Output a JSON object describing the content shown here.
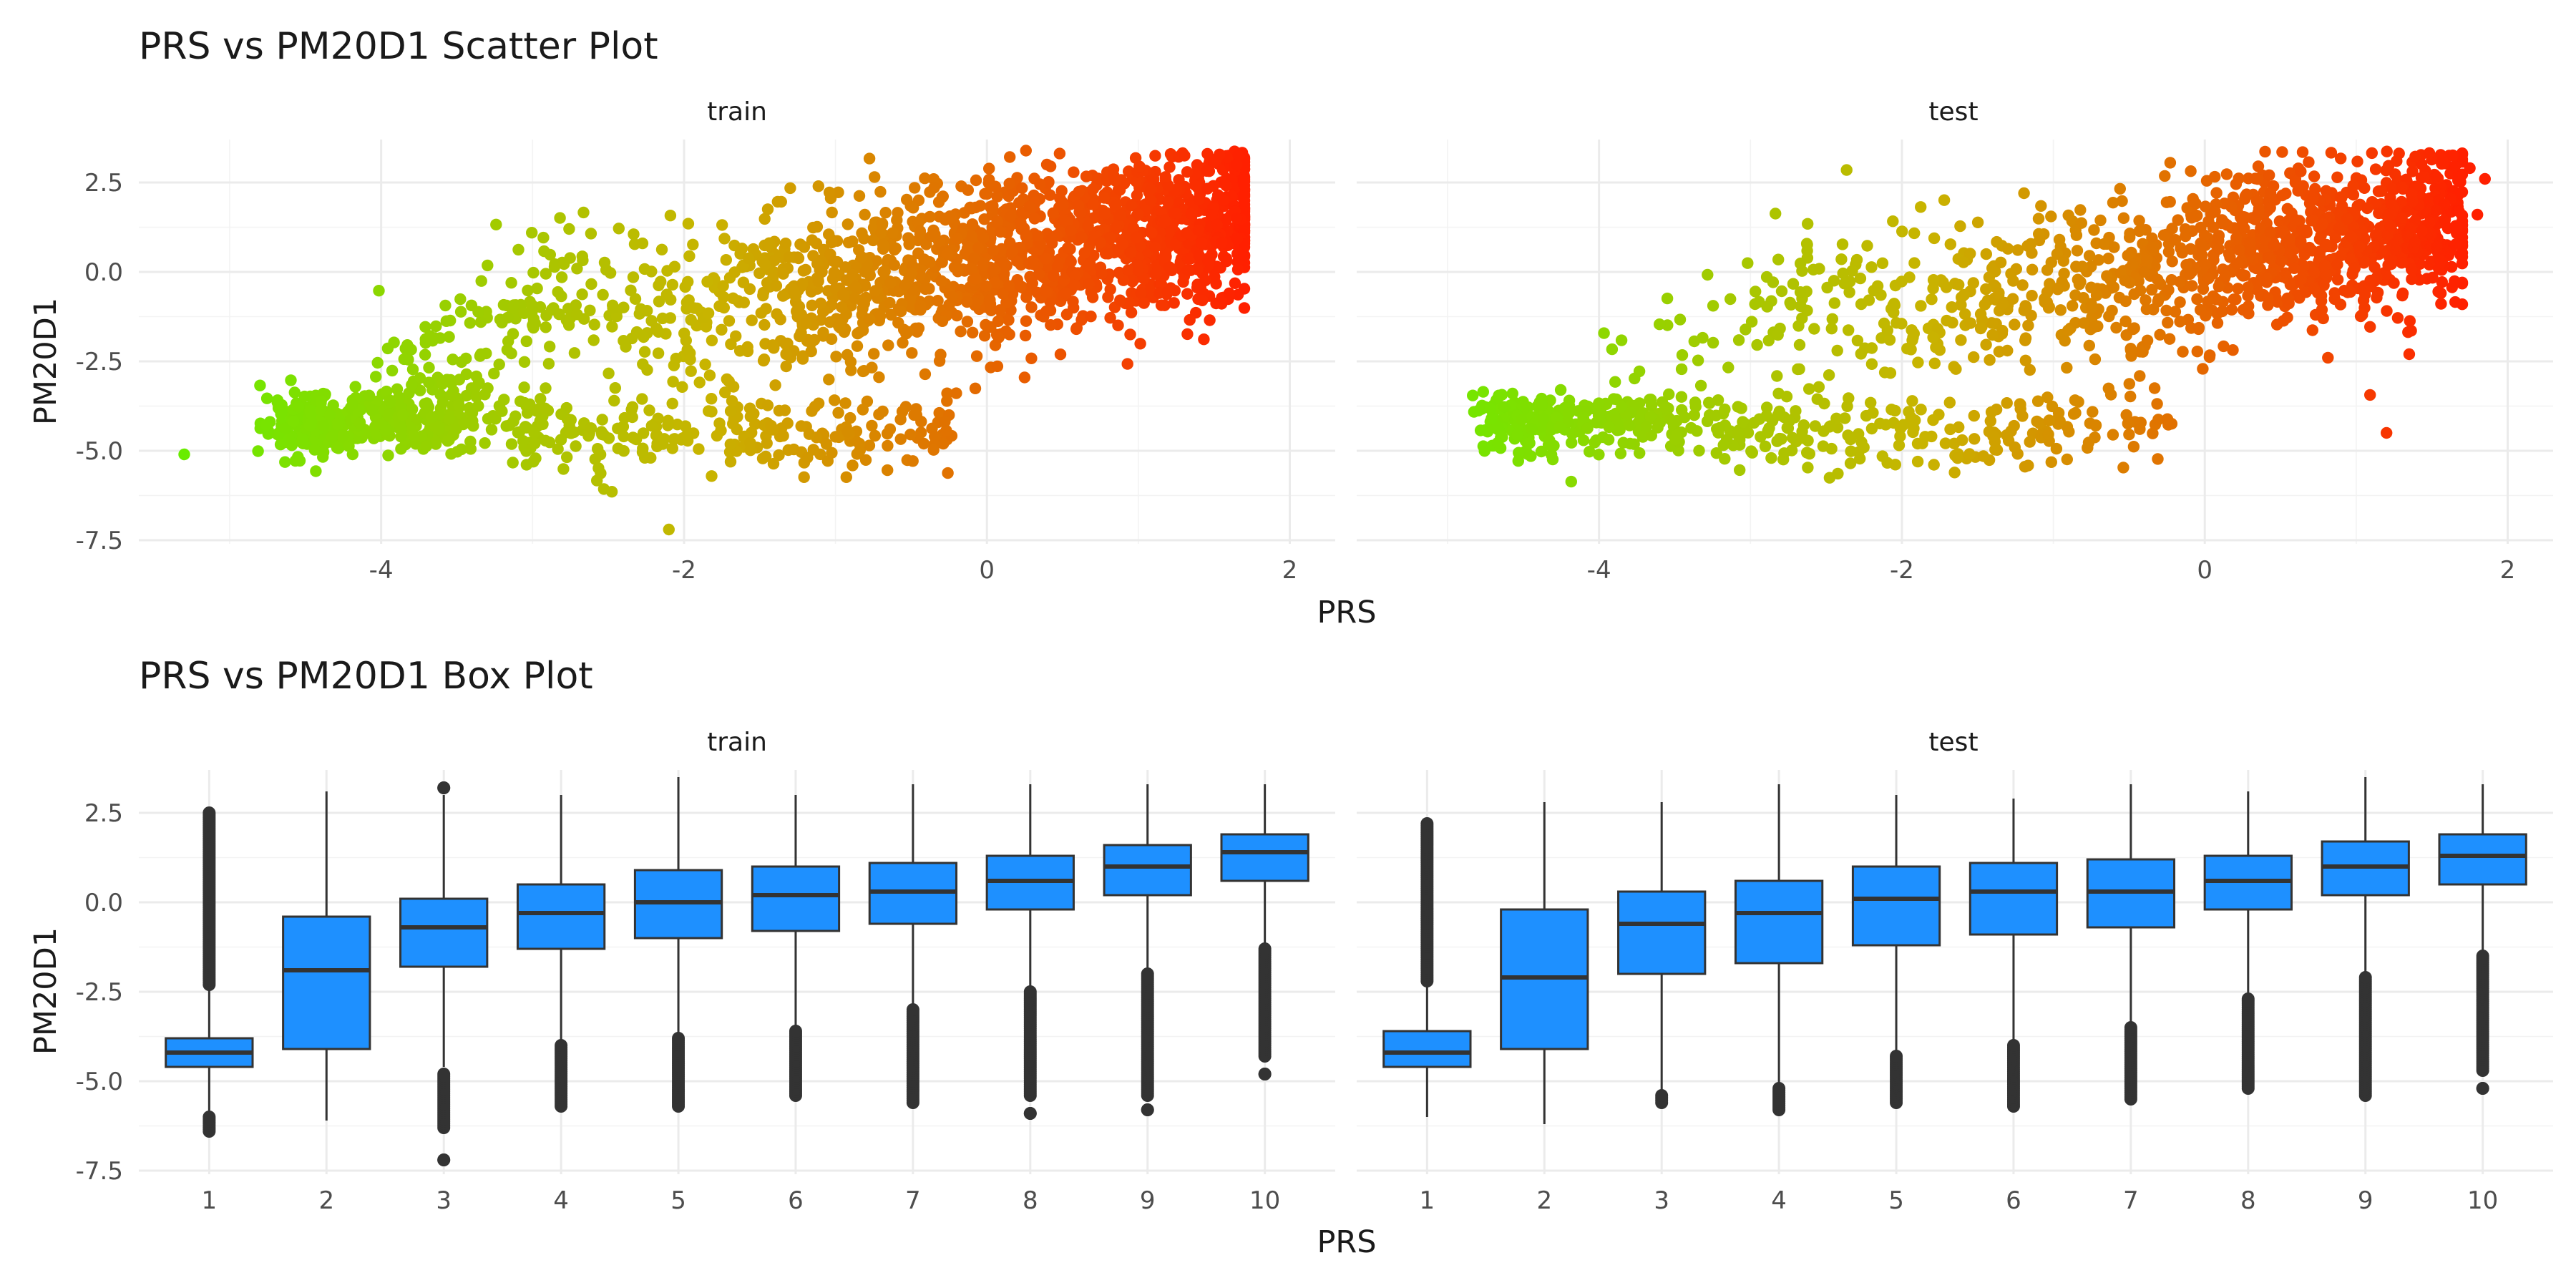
{
  "colors": {
    "gradient_low": "#66ee00",
    "gradient_mid": "#c8b400",
    "gradient_high": "#ff2000",
    "box_fill": "#1e90ff",
    "box_line": "#333333",
    "grid": "#ebebeb"
  },
  "chart_data": [
    {
      "type": "scatter",
      "title": "PRS vs PM20D1 Scatter Plot",
      "xlabel": "PRS",
      "ylabel": "PM20D1",
      "facets": [
        "train",
        "test"
      ],
      "xlim": [
        -5.6,
        2.3
      ],
      "ylim": [
        -7.6,
        3.7
      ],
      "x_ticks": [
        -4,
        -2,
        0,
        2
      ],
      "y_ticks": [
        -7.5,
        -5.0,
        -2.5,
        0.0,
        2.5
      ],
      "y_tick_labels": [
        "-7.5",
        "-5.0",
        "-2.5",
        "0.0",
        "2.5"
      ],
      "color_by": "PRS",
      "grid": true,
      "series": [
        {
          "facet": "train",
          "n_points_approx": 20000,
          "x_range": [
            -5.4,
            1.7
          ],
          "y_range": [
            -7.2,
            3.6
          ],
          "relation": "positive, two clusters"
        },
        {
          "facet": "test",
          "n_points_approx": 5000,
          "x_range": [
            -5.2,
            1.9
          ],
          "y_range": [
            -6.2,
            3.5
          ],
          "relation": "positive, two clusters"
        }
      ],
      "outliers": [
        {
          "facet": "train",
          "x": 1.65,
          "y": 3.0
        },
        {
          "facet": "train",
          "x": 1.65,
          "y": 1.5
        },
        {
          "facet": "train",
          "x": 1.6,
          "y": -0.6
        },
        {
          "facet": "train",
          "x": -2.1,
          "y": -7.2
        },
        {
          "facet": "train",
          "x": -5.3,
          "y": -5.1
        },
        {
          "facet": "test",
          "x": 1.75,
          "y": 2.9
        },
        {
          "facet": "test",
          "x": 1.85,
          "y": 2.6
        },
        {
          "facet": "test",
          "x": 1.8,
          "y": 1.6
        },
        {
          "facet": "test",
          "x": 1.35,
          "y": -2.3
        },
        {
          "facet": "test",
          "x": 1.2,
          "y": -4.5
        }
      ]
    },
    {
      "type": "box",
      "title": "PRS vs PM20D1 Box Plot",
      "xlabel": "PRS",
      "ylabel": "PM20D1",
      "facets": [
        "train",
        "test"
      ],
      "categories": [
        "1",
        "2",
        "3",
        "4",
        "5",
        "6",
        "7",
        "8",
        "9",
        "10"
      ],
      "ylim": [
        -7.6,
        3.7
      ],
      "y_ticks": [
        -7.5,
        -5.0,
        -2.5,
        0.0,
        2.5
      ],
      "y_tick_labels": [
        "-7.5",
        "-5.0",
        "-2.5",
        "0.0",
        "2.5"
      ],
      "grid": true,
      "series": [
        {
          "facet": "train",
          "boxes": [
            {
              "category": "1",
              "min": -6.2,
              "q1": -4.6,
              "median": -4.2,
              "q3": -3.8,
              "max": 2.5,
              "outlier_ranges": [
                [
                  -6.4,
                  -6.0
                ],
                [
                  -2.3,
                  2.5
                ]
              ]
            },
            {
              "category": "2",
              "min": -6.1,
              "q1": -4.1,
              "median": -1.9,
              "q3": -0.4,
              "max": 3.1,
              "outlier_ranges": []
            },
            {
              "category": "3",
              "min": -4.6,
              "q1": -1.8,
              "median": -0.7,
              "q3": 0.1,
              "max": 3.0,
              "outlier_ranges": [
                [
                  -7.2,
                  -7.2
                ],
                [
                  -6.3,
                  -4.8
                ],
                [
                  3.2,
                  3.2
                ]
              ]
            },
            {
              "category": "4",
              "min": -4.0,
              "q1": -1.3,
              "median": -0.3,
              "q3": 0.5,
              "max": 3.0,
              "outlier_ranges": [
                [
                  -5.7,
                  -4.0
                ]
              ]
            },
            {
              "category": "5",
              "min": -3.7,
              "q1": -1.0,
              "median": 0.0,
              "q3": 0.9,
              "max": 3.5,
              "outlier_ranges": [
                [
                  -5.7,
                  -3.8
                ]
              ]
            },
            {
              "category": "6",
              "min": -3.5,
              "q1": -0.8,
              "median": 0.2,
              "q3": 1.0,
              "max": 3.0,
              "outlier_ranges": [
                [
                  -5.4,
                  -3.6
                ]
              ]
            },
            {
              "category": "7",
              "min": -3.0,
              "q1": -0.6,
              "median": 0.3,
              "q3": 1.1,
              "max": 3.3,
              "outlier_ranges": [
                [
                  -5.6,
                  -3.0
                ]
              ]
            },
            {
              "category": "8",
              "min": -2.5,
              "q1": -0.2,
              "median": 0.6,
              "q3": 1.3,
              "max": 3.3,
              "outlier_ranges": [
                [
                  -5.9,
                  -5.9
                ],
                [
                  -5.4,
                  -2.5
                ]
              ]
            },
            {
              "category": "9",
              "min": -1.9,
              "q1": 0.2,
              "median": 1.0,
              "q3": 1.6,
              "max": 3.3,
              "outlier_ranges": [
                [
                  -5.8,
                  -5.8
                ],
                [
                  -5.4,
                  -2.0
                ]
              ]
            },
            {
              "category": "10",
              "min": -1.2,
              "q1": 0.6,
              "median": 1.4,
              "q3": 1.9,
              "max": 3.3,
              "outlier_ranges": [
                [
                  -4.8,
                  -4.8
                ],
                [
                  -4.3,
                  -1.3
                ]
              ]
            }
          ]
        },
        {
          "facet": "test",
          "boxes": [
            {
              "category": "1",
              "min": -6.0,
              "q1": -4.6,
              "median": -4.2,
              "q3": -3.6,
              "max": 2.2,
              "outlier_ranges": [
                [
                  -2.2,
                  2.2
                ]
              ]
            },
            {
              "category": "2",
              "min": -6.2,
              "q1": -4.1,
              "median": -2.1,
              "q3": -0.2,
              "max": 2.8,
              "outlier_ranges": []
            },
            {
              "category": "3",
              "min": -5.3,
              "q1": -2.0,
              "median": -0.6,
              "q3": 0.3,
              "max": 2.8,
              "outlier_ranges": [
                [
                  -5.6,
                  -5.4
                ]
              ]
            },
            {
              "category": "4",
              "min": -5.1,
              "q1": -1.7,
              "median": -0.3,
              "q3": 0.6,
              "max": 3.3,
              "outlier_ranges": [
                [
                  -5.8,
                  -5.2
                ]
              ]
            },
            {
              "category": "5",
              "min": -4.2,
              "q1": -1.2,
              "median": 0.1,
              "q3": 1.0,
              "max": 3.0,
              "outlier_ranges": [
                [
                  -5.6,
                  -4.3
                ]
              ]
            },
            {
              "category": "6",
              "min": -4.0,
              "q1": -0.9,
              "median": 0.3,
              "q3": 1.1,
              "max": 2.9,
              "outlier_ranges": [
                [
                  -5.7,
                  -4.0
                ]
              ]
            },
            {
              "category": "7",
              "min": -3.5,
              "q1": -0.7,
              "median": 0.3,
              "q3": 1.2,
              "max": 3.3,
              "outlier_ranges": [
                [
                  -5.5,
                  -3.5
                ]
              ]
            },
            {
              "category": "8",
              "min": -2.7,
              "q1": -0.2,
              "median": 0.6,
              "q3": 1.3,
              "max": 3.1,
              "outlier_ranges": [
                [
                  -5.2,
                  -2.7
                ]
              ]
            },
            {
              "category": "9",
              "min": -2.0,
              "q1": 0.2,
              "median": 1.0,
              "q3": 1.7,
              "max": 3.5,
              "outlier_ranges": [
                [
                  -5.4,
                  -2.1
                ]
              ]
            },
            {
              "category": "10",
              "min": -1.4,
              "q1": 0.5,
              "median": 1.3,
              "q3": 1.9,
              "max": 3.3,
              "outlier_ranges": [
                [
                  -5.2,
                  -5.2
                ],
                [
                  -4.7,
                  -1.5
                ]
              ]
            }
          ]
        }
      ]
    }
  ]
}
